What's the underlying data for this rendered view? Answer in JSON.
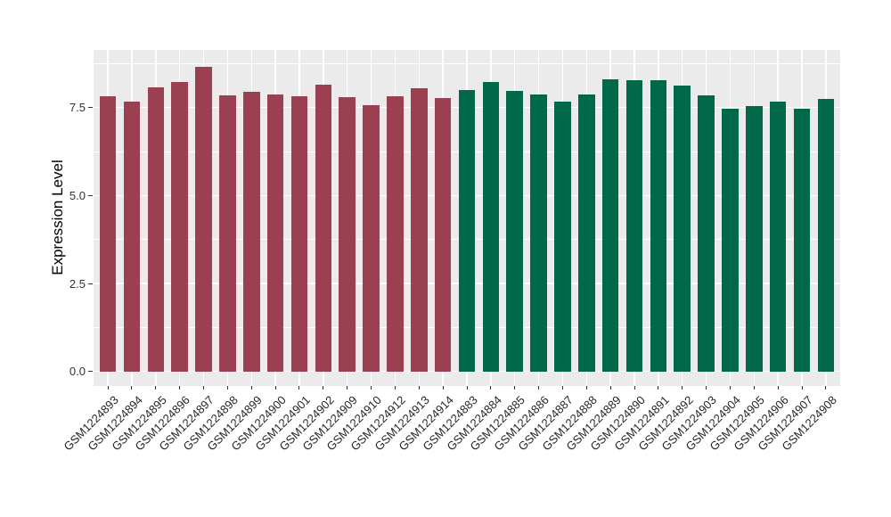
{
  "chart_data": {
    "type": "bar",
    "title": "",
    "xlabel": "",
    "ylabel": "Expression Level",
    "legend_position": "none",
    "grid": "major and minor horizontal white lines, major vertical white lines at bar centers, on grey panel",
    "panel_bg": "#EBEBEB",
    "grid_color": "#FFFFFF",
    "axis_text_color": "#333333",
    "y_tick_labels": [
      "0.0",
      "2.5",
      "5.0",
      "7.5"
    ],
    "y_tick_values": [
      0,
      2.5,
      5,
      7.5
    ],
    "y_minor_values": [
      1.25,
      3.75,
      6.25,
      8.75
    ],
    "ylim": [
      -0.41,
      9.14
    ],
    "group_colors": {
      "group1": "#9A4050",
      "group2": "#016949"
    },
    "categories": [
      "GSM1224893",
      "GSM1224894",
      "GSM1224895",
      "GSM1224896",
      "GSM1224897",
      "GSM1224898",
      "GSM1224899",
      "GSM1224900",
      "GSM1224901",
      "GSM1224902",
      "GSM1224909",
      "GSM1224910",
      "GSM1224912",
      "GSM1224913",
      "GSM1224914",
      "GSM1224883",
      "GSM1224884",
      "GSM1224885",
      "GSM1224886",
      "GSM1224887",
      "GSM1224888",
      "GSM1224889",
      "GSM1224890",
      "GSM1224891",
      "GSM1224892",
      "GSM1224903",
      "GSM1224904",
      "GSM1224905",
      "GSM1224906",
      "GSM1224907",
      "GSM1224908"
    ],
    "bars": [
      {
        "label": "GSM1224893",
        "value": 7.83,
        "group": "group1"
      },
      {
        "label": "GSM1224894",
        "value": 7.66,
        "group": "group1"
      },
      {
        "label": "GSM1224895",
        "value": 8.07,
        "group": "group1"
      },
      {
        "label": "GSM1224896",
        "value": 8.23,
        "group": "group1"
      },
      {
        "label": "GSM1224897",
        "value": 8.67,
        "group": "group1"
      },
      {
        "label": "GSM1224898",
        "value": 7.84,
        "group": "group1"
      },
      {
        "label": "GSM1224899",
        "value": 7.95,
        "group": "group1"
      },
      {
        "label": "GSM1224900",
        "value": 7.86,
        "group": "group1"
      },
      {
        "label": "GSM1224901",
        "value": 7.81,
        "group": "group1"
      },
      {
        "label": "GSM1224902",
        "value": 8.16,
        "group": "group1"
      },
      {
        "label": "GSM1224909",
        "value": 7.8,
        "group": "group1"
      },
      {
        "label": "GSM1224910",
        "value": 7.57,
        "group": "group1"
      },
      {
        "label": "GSM1224912",
        "value": 7.81,
        "group": "group1"
      },
      {
        "label": "GSM1224913",
        "value": 8.05,
        "group": "group1"
      },
      {
        "label": "GSM1224914",
        "value": 7.78,
        "group": "group1"
      },
      {
        "label": "GSM1224883",
        "value": 8.0,
        "group": "group2"
      },
      {
        "label": "GSM1224884",
        "value": 8.22,
        "group": "group2"
      },
      {
        "label": "GSM1224885",
        "value": 7.97,
        "group": "group2"
      },
      {
        "label": "GSM1224886",
        "value": 7.86,
        "group": "group2"
      },
      {
        "label": "GSM1224887",
        "value": 7.67,
        "group": "group2"
      },
      {
        "label": "GSM1224888",
        "value": 7.86,
        "group": "group2"
      },
      {
        "label": "GSM1224889",
        "value": 8.31,
        "group": "group2"
      },
      {
        "label": "GSM1224890",
        "value": 8.29,
        "group": "group2"
      },
      {
        "label": "GSM1224891",
        "value": 8.29,
        "group": "group2"
      },
      {
        "label": "GSM1224892",
        "value": 8.13,
        "group": "group2"
      },
      {
        "label": "GSM1224903",
        "value": 7.84,
        "group": "group2"
      },
      {
        "label": "GSM1224904",
        "value": 7.47,
        "group": "group2"
      },
      {
        "label": "GSM1224905",
        "value": 7.54,
        "group": "group2"
      },
      {
        "label": "GSM1224906",
        "value": 7.67,
        "group": "group2"
      },
      {
        "label": "GSM1224907",
        "value": 7.47,
        "group": "group2"
      },
      {
        "label": "GSM1224908",
        "value": 7.74,
        "group": "group2"
      }
    ]
  }
}
